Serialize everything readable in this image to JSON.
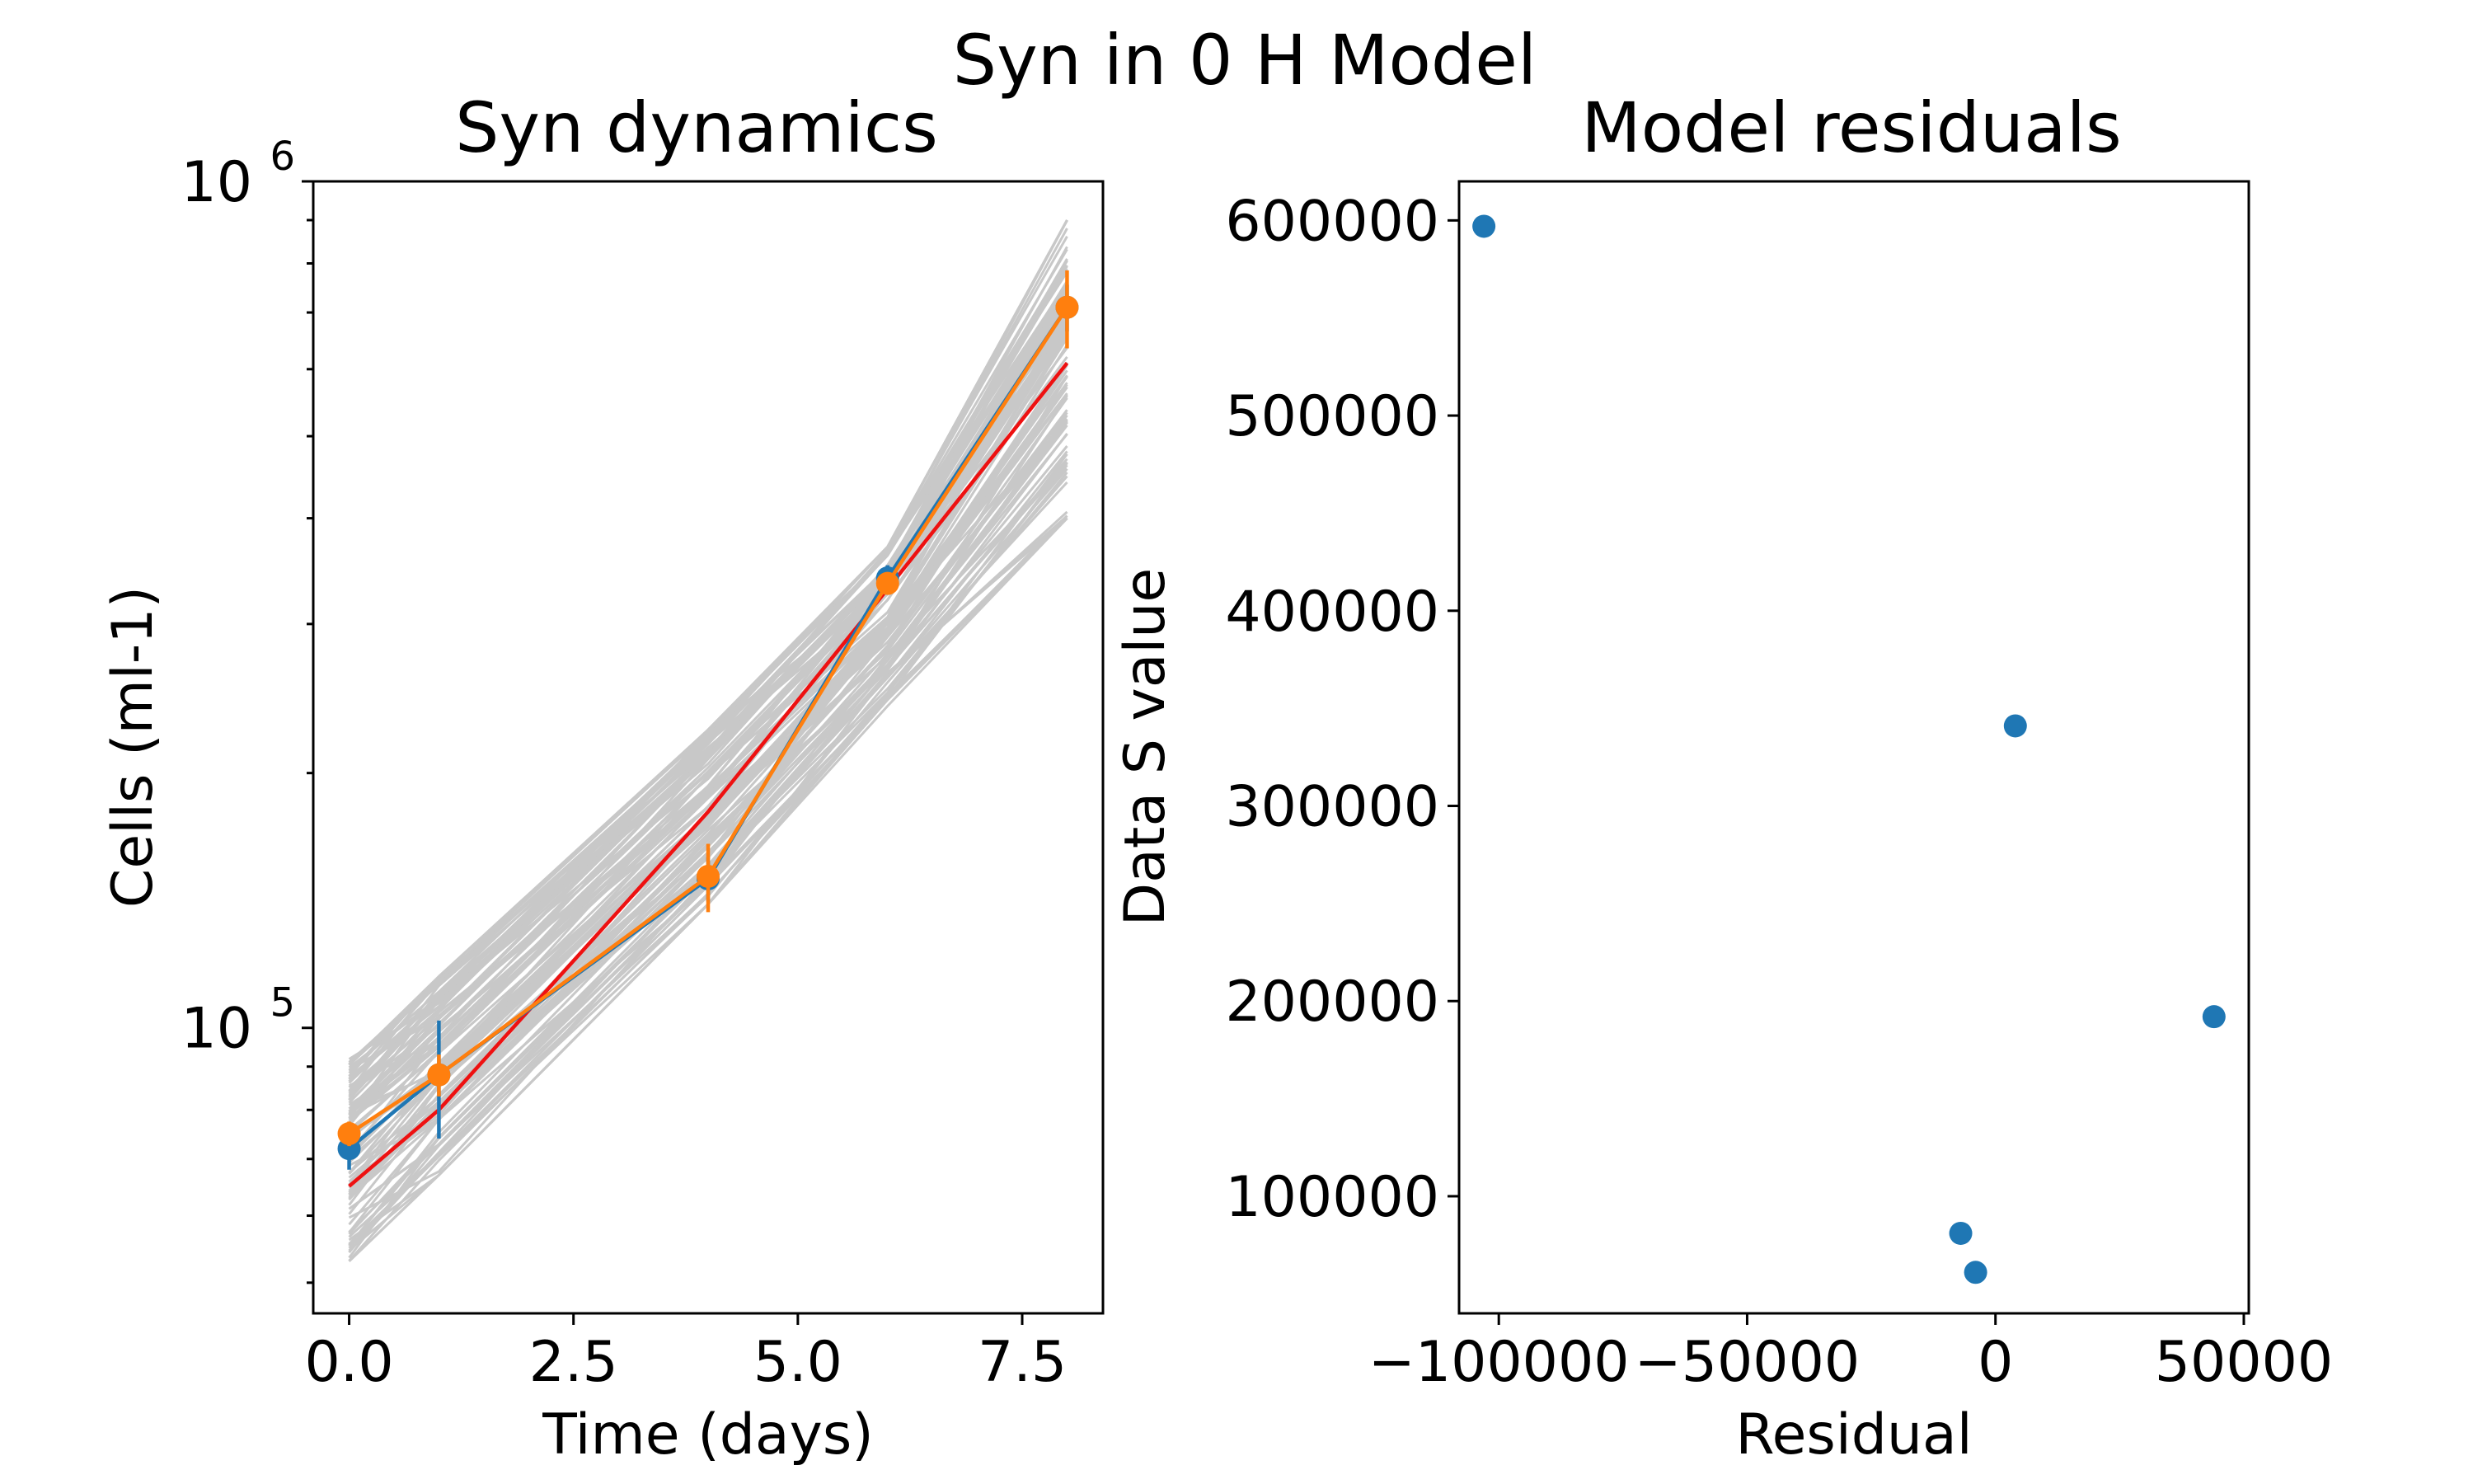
{
  "figure": {
    "suptitle": "Syn in 0 H Model"
  },
  "chart_data": [
    {
      "type": "line",
      "title": "Syn dynamics",
      "xlabel": "Time (days)",
      "ylabel": "Cells (ml-1)",
      "xlim": [
        -0.4,
        8.4
      ],
      "ylim": [
        46000,
        1000000
      ],
      "yscale": "log",
      "grid": false,
      "xticks": [
        {
          "value": 0.0,
          "label": "0.0"
        },
        {
          "value": 2.5,
          "label": "2.5"
        },
        {
          "value": 5.0,
          "label": "5.0"
        },
        {
          "value": 7.5,
          "label": "7.5"
        }
      ],
      "yticks_major": [
        {
          "value": 100000,
          "base": "10",
          "exp": "5"
        },
        {
          "value": 1000000,
          "base": "10",
          "exp": "6"
        }
      ],
      "yticks_minor": [
        50000,
        60000,
        70000,
        80000,
        90000,
        200000,
        300000,
        400000,
        500000,
        600000,
        700000,
        800000,
        900000
      ],
      "ensemble": {
        "color": "#c8c8c8",
        "count": 100,
        "x": [
          0,
          1,
          4,
          6,
          8
        ],
        "low": [
          53000,
          67000,
          140000,
          240000,
          400000
        ],
        "high": [
          92000,
          115000,
          225000,
          370000,
          900000
        ]
      },
      "model_fit": {
        "color": "#ee1111",
        "x": [
          0,
          1,
          4,
          6,
          8
        ],
        "y": [
          65000,
          80000,
          180000,
          330000,
          610000
        ]
      },
      "series": [
        {
          "color": "#1f77b4",
          "x": [
            0,
            1,
            4,
            6,
            8
          ],
          "y": [
            72000,
            88000,
            150000,
            340000,
            710000
          ],
          "yerr": [
            4000,
            14000,
            9000,
            12000,
            45000
          ]
        },
        {
          "color": "#ff7f0e",
          "x": [
            0,
            1,
            4,
            6,
            8
          ],
          "y": [
            75000,
            88000,
            151000,
            335000,
            710000
          ],
          "yerr": [
            2500,
            5000,
            14000,
            8000,
            75000
          ]
        }
      ]
    },
    {
      "type": "scatter",
      "title": "Model residuals",
      "xlabel": "Residual",
      "ylabel": "Data S value",
      "xlim": [
        -108000,
        51000
      ],
      "ylim": [
        40000,
        620000
      ],
      "grid": false,
      "color": "#1f77b4",
      "xticks": [
        {
          "value": -100000,
          "label": "−100000"
        },
        {
          "value": -50000,
          "label": "−50000"
        },
        {
          "value": 0,
          "label": "0"
        },
        {
          "value": 50000,
          "label": "50000"
        }
      ],
      "yticks": [
        {
          "value": 100000,
          "label": "100000"
        },
        {
          "value": 200000,
          "label": "200000"
        },
        {
          "value": 300000,
          "label": "300000"
        },
        {
          "value": 400000,
          "label": "400000"
        },
        {
          "value": 500000,
          "label": "500000"
        },
        {
          "value": 600000,
          "label": "600000"
        }
      ],
      "points": [
        {
          "x": -103000,
          "y": 597000
        },
        {
          "x": 4000,
          "y": 341000
        },
        {
          "x": 44000,
          "y": 192000
        },
        {
          "x": -7000,
          "y": 81000
        },
        {
          "x": -4000,
          "y": 61000
        }
      ]
    }
  ]
}
